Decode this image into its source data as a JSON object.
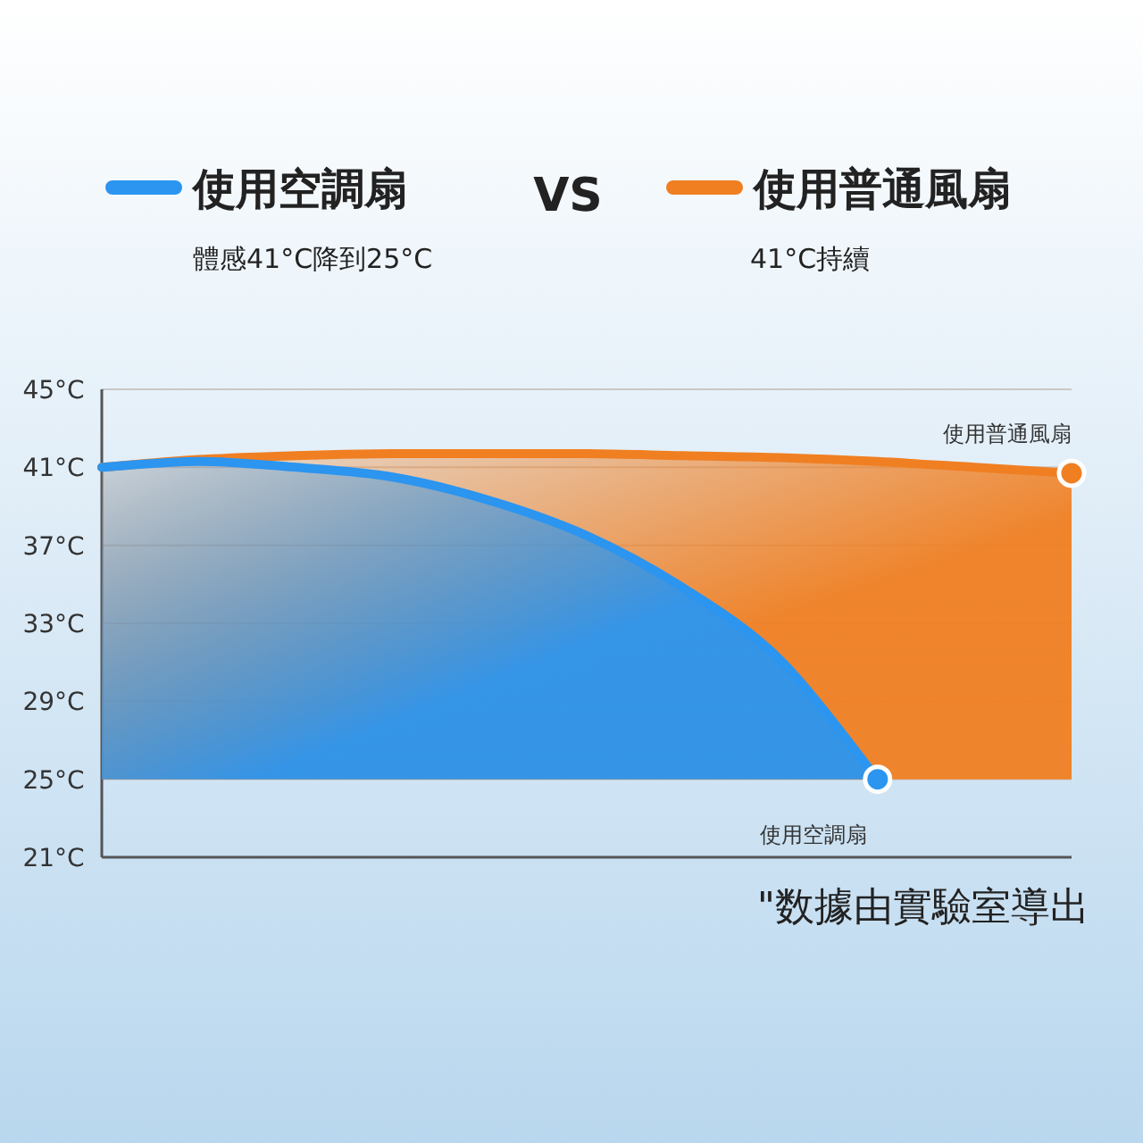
{
  "chart_data": {
    "type": "area",
    "categories": [
      null,
      null,
      null,
      null,
      null,
      null,
      null,
      null,
      null,
      null,
      null
    ],
    "series": [
      {
        "name": "使用空調扇",
        "color": "#2b95f0",
        "values": [
          41,
          41.3,
          41,
          40.5,
          39.3,
          37.5,
          34.8,
          31.1,
          25,
          null,
          null
        ]
      },
      {
        "name": "使用普通風扇",
        "color": "#f07f22",
        "values": [
          41,
          41.4,
          41.6,
          41.7,
          41.7,
          41.7,
          41.6,
          41.5,
          41.3,
          41.0,
          40.7
        ]
      }
    ],
    "ylim": [
      21,
      45
    ],
    "yticks": [
      {
        "value": 21,
        "label": "21°C"
      },
      {
        "value": 25,
        "label": "25°C"
      },
      {
        "value": 29,
        "label": "29°C"
      },
      {
        "value": 33,
        "label": "33°C"
      },
      {
        "value": 37,
        "label": "37°C"
      },
      {
        "value": 41,
        "label": "41°C"
      },
      {
        "value": 45,
        "label": "45°C"
      }
    ],
    "grid": "y",
    "legend": "top",
    "tick_labels": "y",
    "annotations": [
      "體感41°C降到25°C",
      "41°C持續",
      "VS",
      "\"数據由實驗室導出"
    ]
  }
}
